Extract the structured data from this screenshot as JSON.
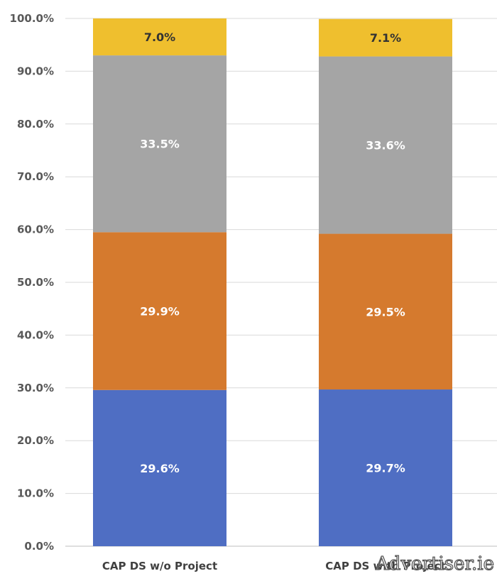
{
  "chart_data": {
    "type": "bar",
    "stacked": true,
    "categories": [
      "CAP DS w/o Project",
      "CAP DS with Project"
    ],
    "series": [
      {
        "values": [
          29.6,
          29.7
        ],
        "color": "#4f6ec3",
        "labels": [
          "29.6%",
          "29.7%"
        ],
        "label_color": "#ffffff"
      },
      {
        "values": [
          29.9,
          29.5
        ],
        "color": "#d57a2e",
        "labels": [
          "29.9%",
          "29.5%"
        ],
        "label_color": "#ffffff"
      },
      {
        "values": [
          33.5,
          33.6
        ],
        "color": "#a5a5a5",
        "labels": [
          "33.5%",
          "33.6%"
        ],
        "label_color": "#ffffff"
      },
      {
        "values": [
          7.0,
          7.1
        ],
        "color": "#efbf2e",
        "labels": [
          "7.0%",
          "7.1%"
        ],
        "label_color": "#333333"
      }
    ],
    "yticks": [
      "0.0%",
      "10.0%",
      "20.0%",
      "30.0%",
      "40.0%",
      "50.0%",
      "60.0%",
      "70.0%",
      "80.0%",
      "90.0%",
      "100.0%"
    ],
    "ylim": [
      0,
      100
    ],
    "grid": true
  },
  "watermark": "Advertiser.ie"
}
